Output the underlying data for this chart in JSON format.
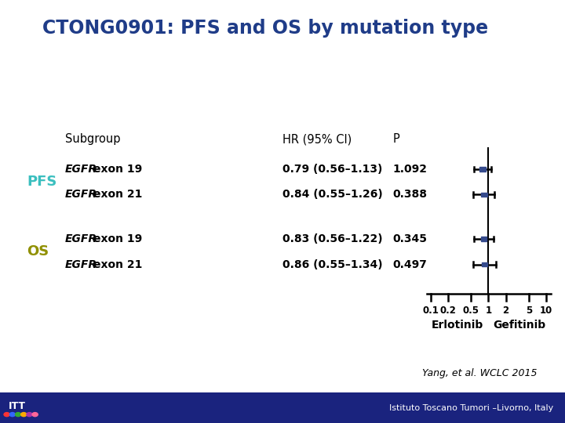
{
  "title": "CTONG0901: PFS and OS by mutation type",
  "title_color": "#1F3C88",
  "title_fontsize": 17,
  "background_color": "#ffffff",
  "subgroup_label": "Subgroup",
  "hr_label": "HR (95% Cl)",
  "p_label": "P",
  "rows": [
    {
      "section": "PFS",
      "section_color": "#3BBFBF",
      "label": "EGFR exon 19",
      "hr": 0.79,
      "ci_low": 0.56,
      "ci_high": 1.13,
      "hr_text": "0.79 (0.56–1.13)",
      "p_text": "1.092"
    },
    {
      "section": "PFS",
      "section_color": "#3BBFBF",
      "label": "EGFR exon 21",
      "hr": 0.84,
      "ci_low": 0.55,
      "ci_high": 1.26,
      "hr_text": "0.84 (0.55–1.26)",
      "p_text": "0.388"
    },
    {
      "section": "OS",
      "section_color": "#909000",
      "label": "EGFR exon 19",
      "hr": 0.83,
      "ci_low": 0.56,
      "ci_high": 1.22,
      "hr_text": "0.83 (0.56–1.22)",
      "p_text": "0.345"
    },
    {
      "section": "OS",
      "section_color": "#909000",
      "label": "EGFR exon 21",
      "hr": 0.86,
      "ci_low": 0.55,
      "ci_high": 1.34,
      "hr_text": "0.86 (0.55–1.34)",
      "p_text": "0.497"
    }
  ],
  "axis_ticks": [
    0.1,
    0.2,
    0.5,
    1,
    2,
    5,
    10
  ],
  "axis_tick_labels": [
    "0.1",
    "0.2",
    "0.5",
    "1",
    "2",
    "5",
    "10"
  ],
  "erlotinib_label": "Erlotinib",
  "gefitinib_label": "Gefitinib",
  "footer_text": "Yang, et al. WCLC 2015",
  "footer2_text": "Istituto Toscano Tumori –Livorno, Italy",
  "logo_bar_color": "#1A237E",
  "marker_color": "#354A8C",
  "line_color": "#000000",
  "pfs_color": "#3BBFBF",
  "os_color": "#909000"
}
